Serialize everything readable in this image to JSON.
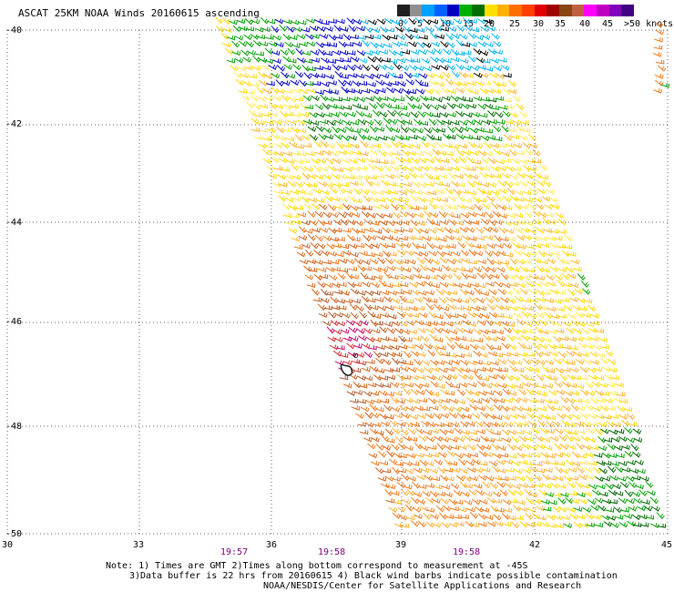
{
  "title": "ASCAT 25KM NOAA Winds 20160615 ascending",
  "legend": {
    "colors": [
      "#202020",
      "#909090",
      "#00a0ff",
      "#0060ff",
      "#0000c0",
      "#00b000",
      "#007000",
      "#ffe000",
      "#ffb000",
      "#ff7000",
      "#ff4000",
      "#e00000",
      "#a00000",
      "#8b4513",
      "#c06040",
      "#ff00ff",
      "#c000c0",
      "#8000c0",
      "#400080"
    ],
    "labels": [
      "0",
      "5",
      "10",
      "15",
      "20",
      "25",
      "30",
      "35",
      "40",
      "45",
      ">50 knots"
    ]
  },
  "map": {
    "lat_labels": [
      "-40",
      "-42",
      "-44",
      "-46",
      "-48",
      "-50"
    ],
    "lon_labels": [
      "30",
      "33",
      "36",
      "39",
      "42",
      "45"
    ],
    "time_labels": [
      "19:57",
      "19:58",
      "19:58"
    ],
    "storm_symbol": "ʘ",
    "colors": {
      "grid": "#606060",
      "text": "#000000",
      "time": "#800080",
      "yellow_light": "#ffe84a",
      "yellow": "#ffd700",
      "orange_light": "#ffb02e",
      "orange": "#f0781a",
      "orange_dark": "#d2601a",
      "brown": "#b05a28",
      "red": "#d83030",
      "magenta": "#c8006e",
      "green": "#00a000",
      "green_dark": "#006400",
      "blue": "#0000c8",
      "cyan": "#00b4f0",
      "black": "#000000"
    }
  },
  "notes": {
    "line1": "Note: 1) Times are GMT 2)Times along bottom correspond to measurement at -45S",
    "line2": "3)Data buffer is 22 hrs from 20160615 4) Black wind barbs indicate possible contamination",
    "line3": "NOAA/NESDIS/Center for Satellite Applications and Research"
  }
}
